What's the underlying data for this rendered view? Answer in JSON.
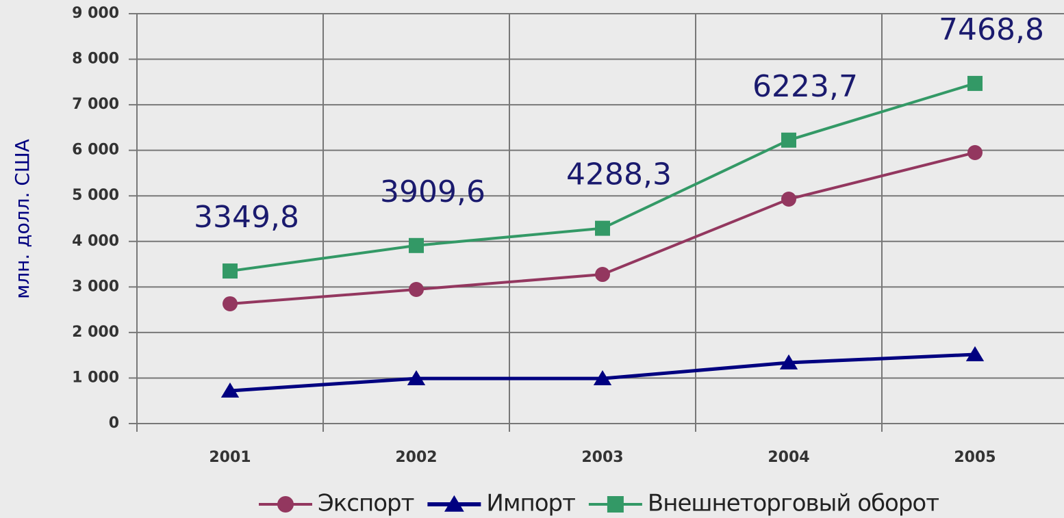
{
  "chart_data": {
    "type": "line",
    "ylabel": "млн. долл. США",
    "categories": [
      "2001",
      "2002",
      "2003",
      "2004",
      "2005"
    ],
    "series": [
      {
        "name": "Экспорт",
        "color": "#93375f",
        "marker": "circle",
        "values": [
          2630,
          2945,
          3275,
          4928,
          5950
        ]
      },
      {
        "name": "Импорт",
        "color": "#000080",
        "marker": "triangle",
        "values": [
          720,
          990,
          990,
          1337,
          1517
        ]
      },
      {
        "name": "Внешнеторговый оборот",
        "color": "#339966",
        "marker": "square",
        "values": [
          3349.8,
          3909.6,
          4288.3,
          6223.7,
          7468.8
        ],
        "value_labels": [
          "3349,8",
          "3909,6",
          "4288,3",
          "6223,7",
          "7468,8"
        ]
      }
    ],
    "ylim": [
      0,
      9000
    ],
    "yticks": [
      0,
      {
        "value": 1000,
        "label": "1 000"
      },
      {
        "value": 2000,
        "label": "2 000"
      },
      {
        "value": 3000,
        "label": "3 000"
      },
      {
        "value": 4000,
        "label": "4 000"
      },
      {
        "value": 5000,
        "label": "5 000"
      },
      {
        "value": 6000,
        "label": "6 000"
      },
      {
        "value": 7000,
        "label": "7 000"
      },
      {
        "value": 8000,
        "label": "8 000"
      },
      {
        "value": 9000,
        "label": "9 000"
      }
    ],
    "grid": true,
    "legend": "bottom"
  }
}
